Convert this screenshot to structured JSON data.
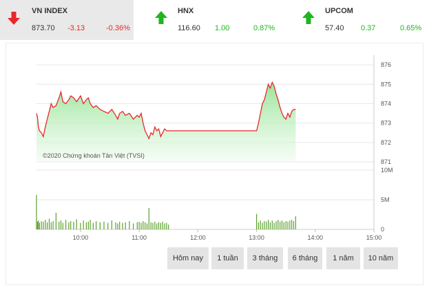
{
  "indices": [
    {
      "name": "VN INDEX",
      "value": "873.70",
      "change": "-3.13",
      "percent": "-0.36%",
      "direction": "down",
      "color": "#e8262b",
      "active": true
    },
    {
      "name": "HNX",
      "value": "116.60",
      "change": "1.00",
      "percent": "0.87%",
      "direction": "up",
      "color": "#1fb51f",
      "active": false
    },
    {
      "name": "UPCOM",
      "value": "57.40",
      "change": "0.37",
      "percent": "0.65%",
      "direction": "up",
      "color": "#1fb51f",
      "active": false
    }
  ],
  "chart_data": [
    {
      "type": "area",
      "watermark": "©2020 Chứng khoán Tân Việt (TVSI)",
      "y_ticks": [
        "876",
        "875",
        "874",
        "873",
        "872",
        "871"
      ],
      "ylim": [
        871,
        876.5
      ],
      "line_color": "#e8262b",
      "x": [
        "09:15",
        "09:16",
        "09:17",
        "09:18",
        "09:20",
        "09:22",
        "09:24",
        "09:26",
        "09:28",
        "09:30",
        "09:32",
        "09:35",
        "09:38",
        "09:40",
        "09:42",
        "09:45",
        "09:48",
        "09:50",
        "09:53",
        "09:56",
        "10:00",
        "10:03",
        "10:06",
        "10:08",
        "10:10",
        "10:13",
        "10:16",
        "10:20",
        "10:24",
        "10:28",
        "10:32",
        "10:36",
        "10:38",
        "10:40",
        "10:43",
        "10:46",
        "10:50",
        "10:54",
        "10:58",
        "11:00",
        "11:02",
        "11:04",
        "11:06",
        "11:08",
        "11:10",
        "11:12",
        "11:14",
        "11:16",
        "11:18",
        "11:20",
        "11:22",
        "11:24",
        "11:26",
        "11:28",
        "11:30",
        "13:00",
        "13:02",
        "13:04",
        "13:06",
        "13:08",
        "13:10",
        "13:12",
        "13:14",
        "13:16",
        "13:18",
        "13:20",
        "13:22",
        "13:24",
        "13:26",
        "13:28",
        "13:30",
        "13:32",
        "13:34",
        "13:36",
        "13:38",
        "13:40"
      ],
      "y": [
        873.5,
        873.3,
        872.8,
        872.6,
        872.5,
        872.3,
        872.8,
        873.2,
        873.6,
        874.0,
        873.8,
        873.9,
        874.3,
        874.6,
        874.1,
        874.0,
        874.2,
        874.4,
        874.3,
        874.1,
        874.4,
        874.0,
        874.2,
        874.3,
        874.0,
        873.8,
        873.9,
        873.7,
        873.6,
        873.5,
        873.7,
        873.4,
        873.2,
        873.5,
        873.6,
        873.4,
        873.5,
        873.2,
        873.4,
        873.3,
        873.5,
        873.0,
        872.6,
        872.4,
        872.2,
        872.5,
        872.4,
        872.8,
        872.6,
        872.7,
        872.3,
        872.5,
        872.7,
        872.6,
        872.6,
        872.6,
        873.0,
        873.5,
        874.0,
        874.2,
        874.6,
        875.0,
        874.8,
        875.1,
        874.9,
        874.5,
        874.2,
        873.8,
        873.5,
        873.3,
        873.2,
        873.5,
        873.3,
        873.6,
        873.7,
        873.7
      ]
    },
    {
      "type": "bar",
      "y_ticks": [
        "10M",
        "5M",
        "0"
      ],
      "ylim": [
        0,
        10
      ],
      "x_ticks": [
        "10:00",
        "11:00",
        "12:00",
        "13:00",
        "14:00",
        "15:00"
      ],
      "bar_color": "#5aa02c",
      "x": [
        "09:15",
        "09:16",
        "09:17",
        "09:18",
        "09:20",
        "09:22",
        "09:24",
        "09:26",
        "09:28",
        "09:30",
        "09:32",
        "09:35",
        "09:38",
        "09:40",
        "09:42",
        "09:45",
        "09:48",
        "09:50",
        "09:53",
        "09:56",
        "10:00",
        "10:03",
        "10:06",
        "10:08",
        "10:10",
        "10:13",
        "10:16",
        "10:20",
        "10:24",
        "10:28",
        "10:32",
        "10:36",
        "10:38",
        "10:40",
        "10:43",
        "10:46",
        "10:50",
        "10:54",
        "10:58",
        "11:00",
        "11:02",
        "11:04",
        "11:06",
        "11:08",
        "11:10",
        "11:12",
        "11:14",
        "11:16",
        "11:18",
        "11:20",
        "11:22",
        "11:24",
        "11:26",
        "11:28",
        "11:30",
        "13:00",
        "13:02",
        "13:04",
        "13:06",
        "13:08",
        "13:10",
        "13:12",
        "13:14",
        "13:16",
        "13:18",
        "13:20",
        "13:22",
        "13:24",
        "13:26",
        "13:28",
        "13:30",
        "13:32",
        "13:34",
        "13:36",
        "13:38",
        "13:40"
      ],
      "values": [
        5.8,
        1.3,
        1.5,
        1.1,
        1.4,
        1.3,
        1.6,
        1.2,
        1.8,
        1.2,
        1.4,
        2.8,
        1.3,
        1.5,
        1.1,
        1.6,
        1.2,
        1.4,
        1.3,
        1.7,
        1.1,
        1.5,
        1.2,
        1.3,
        1.6,
        1.1,
        1.4,
        1.2,
        1.3,
        1.1,
        1.5,
        1.2,
        1.0,
        1.3,
        1.1,
        1.2,
        1.4,
        1.0,
        1.2,
        1.3,
        1.1,
        1.4,
        1.2,
        1.0,
        3.6,
        1.2,
        1.1,
        1.3,
        1.0,
        1.2,
        1.1,
        1.3,
        1.0,
        1.1,
        0.8,
        2.6,
        1.2,
        1.5,
        1.1,
        1.4,
        1.3,
        1.6,
        1.2,
        1.5,
        1.1,
        1.4,
        1.6,
        1.3,
        1.5,
        1.2,
        1.4,
        1.3,
        1.5,
        1.6,
        1.4,
        2.2
      ]
    }
  ],
  "buttons": [
    "Hôm nay",
    "1 tuần",
    "3 tháng",
    "6 tháng",
    "1 năm",
    "10 năm"
  ]
}
